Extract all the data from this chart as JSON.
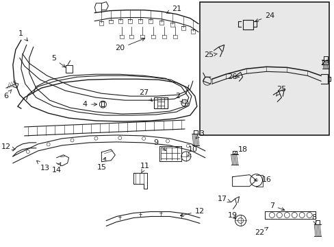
{
  "bg_color": "#ffffff",
  "line_color": "#1a1a1a",
  "inset_bg": "#e8e8e8",
  "fig_width": 4.89,
  "fig_height": 3.6,
  "dpi": 100,
  "font_size": 8,
  "font_size_sm": 7
}
